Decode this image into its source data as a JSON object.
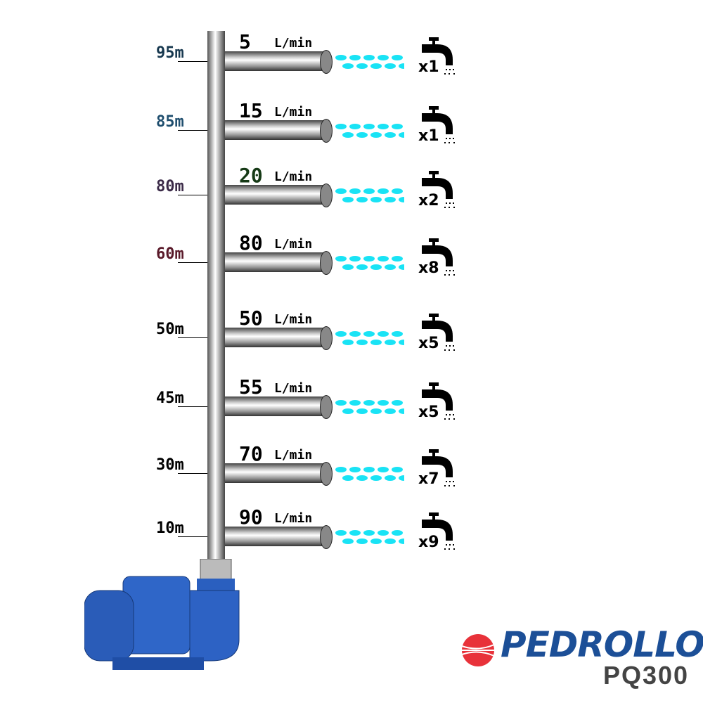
{
  "rows": [
    {
      "height": "95m",
      "height_color": "#17384f",
      "flow": "5",
      "flow_color": "#000000",
      "unit": "L/min",
      "taps": "x1"
    },
    {
      "height": "85m",
      "height_color": "#1f4e6e",
      "flow": "15",
      "flow_color": "#000000",
      "unit": "L/min",
      "taps": "x1"
    },
    {
      "height": "80m",
      "height_color": "#3b2a48",
      "flow": "20",
      "flow_color": "#163a16",
      "unit": "L/min",
      "taps": "x2"
    },
    {
      "height": "60m",
      "height_color": "#5a1a2a",
      "flow": "80",
      "flow_color": "#000000",
      "unit": "L/min",
      "taps": "x8"
    },
    {
      "height": "50m",
      "height_color": "#000000",
      "flow": "50",
      "flow_color": "#000000",
      "unit": "L/min",
      "taps": "x5"
    },
    {
      "height": "45m",
      "height_color": "#000000",
      "flow": "55",
      "flow_color": "#000000",
      "unit": "L/min",
      "taps": "x5"
    },
    {
      "height": "30m",
      "height_color": "#000000",
      "flow": "70",
      "flow_color": "#000000",
      "unit": "L/min",
      "taps": "x7"
    },
    {
      "height": "10m",
      "height_color": "#000000",
      "flow": "90",
      "flow_color": "#000000",
      "unit": "L/min",
      "taps": "x9"
    }
  ],
  "brand": {
    "logo": "PEDROLLO",
    "model": "PQ300",
    "logo_color": "#1c4f97",
    "logo_mark_color": "#e8323a"
  },
  "water_color": "#19e3f5",
  "icons": {
    "tap": "faucet-icon",
    "pump": "pump-icon"
  }
}
